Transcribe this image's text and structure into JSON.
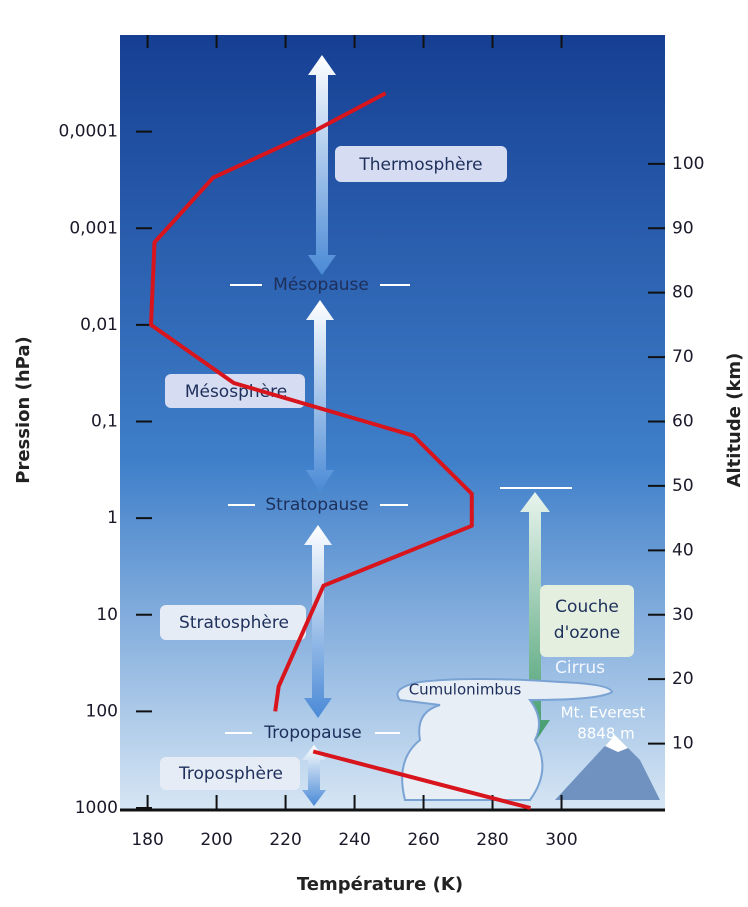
{
  "chart_data": {
    "type": "line",
    "x_label": "Température (K)",
    "y_label": "Pression (hPa)",
    "y2_label": "Altitude (km)",
    "x": [
      249,
      228,
      199,
      182,
      181,
      205,
      257,
      274,
      274,
      231,
      218,
      217,
      null,
      228,
      291
    ],
    "values": [
      4e-05,
      0.0001,
      0.0003,
      0.0014,
      0.01,
      0.04,
      0.14,
      0.56,
      1.2,
      5,
      55,
      100,
      null,
      260,
      1000
    ],
    "color": "#d8141c",
    "xlim": [
      172,
      330
    ],
    "xticks": [
      180,
      200,
      220,
      240,
      260,
      280,
      300
    ],
    "ylim": [
      1000,
      1e-05
    ],
    "ylog": true,
    "yticks": [
      {
        "value": 0.0001,
        "label": "0,0001"
      },
      {
        "value": 0.001,
        "label": "0,001"
      },
      {
        "value": 0.01,
        "label": "0,01"
      },
      {
        "value": 0.1,
        "label": "0,1"
      },
      1,
      10,
      100,
      1000
    ],
    "y2lim": [
      0,
      120
    ],
    "y2ticks": [
      10,
      20,
      30,
      40,
      50,
      60,
      70,
      80,
      90,
      100
    ],
    "annotations": {
      "thermosphere": "Thermosphère",
      "mesopause": "Mésopause",
      "mesosphere": "Mésosphère",
      "stratopause": "Stratopause",
      "stratosphere": "Stratosphère",
      "tropopause": "Tropopause",
      "troposphere": "Troposphère",
      "ozone": [
        "Couche",
        "d'ozone"
      ],
      "cirrus": "Cirrus",
      "cumulonimbus": "Cumulonimbus",
      "everest": [
        "Mt. Everest",
        "8848 m"
      ]
    }
  }
}
